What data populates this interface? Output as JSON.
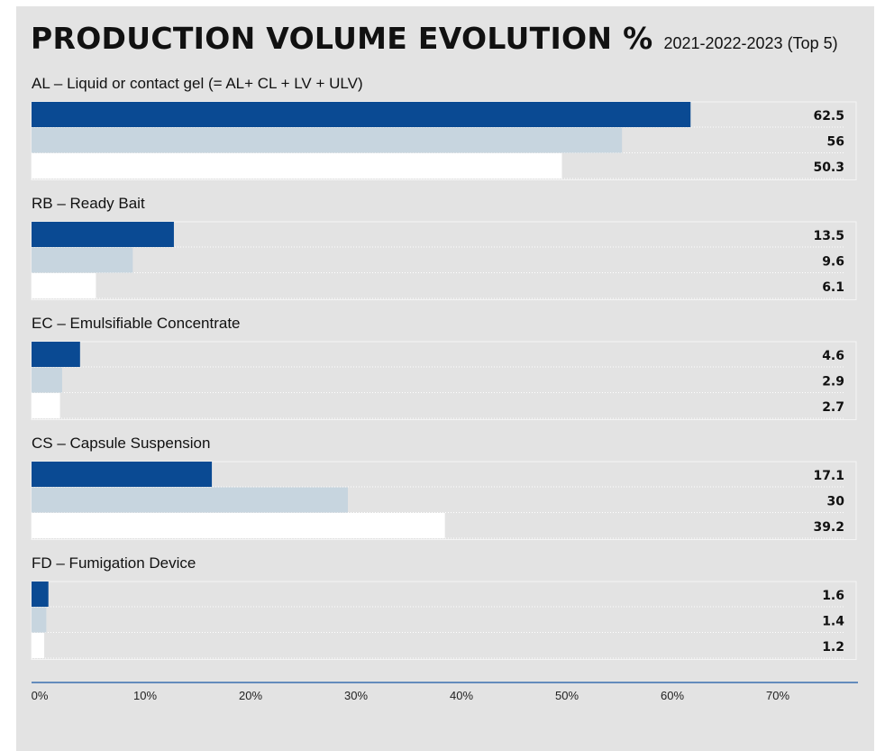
{
  "title": "PRODUCTION VOLUME EVOLUTION %",
  "subtitle": "2021-2022-2023 (Top 5)",
  "colors": {
    "series_1": "#0a4a93",
    "series_2": "#c7d5df",
    "series_3": "#ffffff",
    "background": "#e3e3e3",
    "axis": "#3b6fb0"
  },
  "chart_data": {
    "type": "bar",
    "orientation": "horizontal",
    "categories": [
      "AL – Liquid or contact gel (= AL+ CL + LV + ULV)",
      "RB – Ready Bait",
      "EC – Emulsifiable Concentrate",
      "CS – Capsule Suspension",
      "FD – Fumigation Device"
    ],
    "series": [
      {
        "values": [
          62.5,
          13.5,
          4.6,
          17.1,
          1.6
        ]
      },
      {
        "values": [
          56,
          9.6,
          2.9,
          30,
          1.4
        ]
      },
      {
        "values": [
          50.3,
          6.1,
          2.7,
          39.2,
          1.2
        ]
      }
    ],
    "x_ticks": [
      "0%",
      "10%",
      "20%",
      "30%",
      "40%",
      "50%",
      "60%",
      "70%"
    ],
    "xlim": [
      0,
      70
    ],
    "grid": false,
    "legend": "none"
  }
}
